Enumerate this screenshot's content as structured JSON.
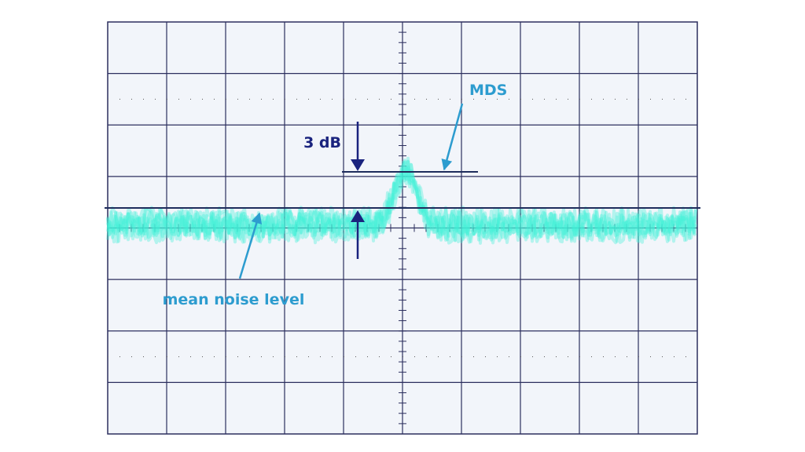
{
  "labels": {
    "mds": "MDS",
    "attenuation": "3 dB",
    "noise": "mean noise level"
  }
}
